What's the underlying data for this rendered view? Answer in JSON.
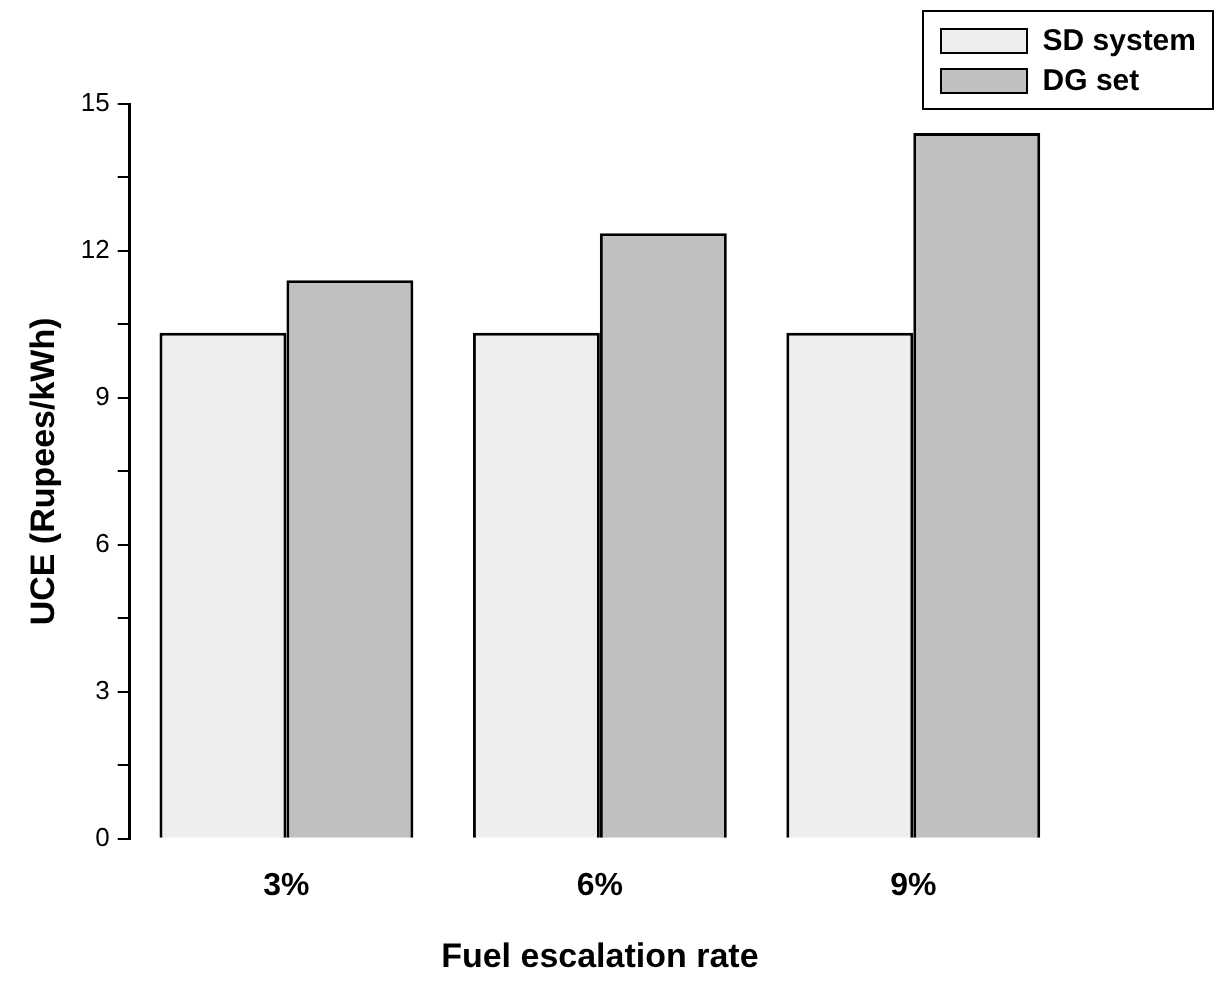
{
  "chart_data": {
    "type": "bar",
    "xlabel": "Fuel escalation rate",
    "ylabel": "UCE (Rupees/kWh)",
    "categories": [
      "3%",
      "6%",
      "9%"
    ],
    "series": [
      {
        "name": "SD system",
        "color": "#eeeeee",
        "values": [
          10.33,
          10.33,
          10.33
        ]
      },
      {
        "name": "DG set",
        "color": "#c0c0c0",
        "values": [
          11.4,
          12.36,
          14.41
        ]
      }
    ],
    "ylim": [
      0,
      15
    ],
    "yticks": [
      0,
      {
        "value": 1.5,
        "label": null
      },
      3,
      {
        "value": 4.5,
        "label": null
      },
      6,
      {
        "value": 7.5,
        "label": null
      },
      9,
      {
        "value": 10.5,
        "label": null
      },
      12,
      {
        "value": 13.5,
        "label": null
      },
      15
    ],
    "grid": false,
    "legend": "top right"
  }
}
